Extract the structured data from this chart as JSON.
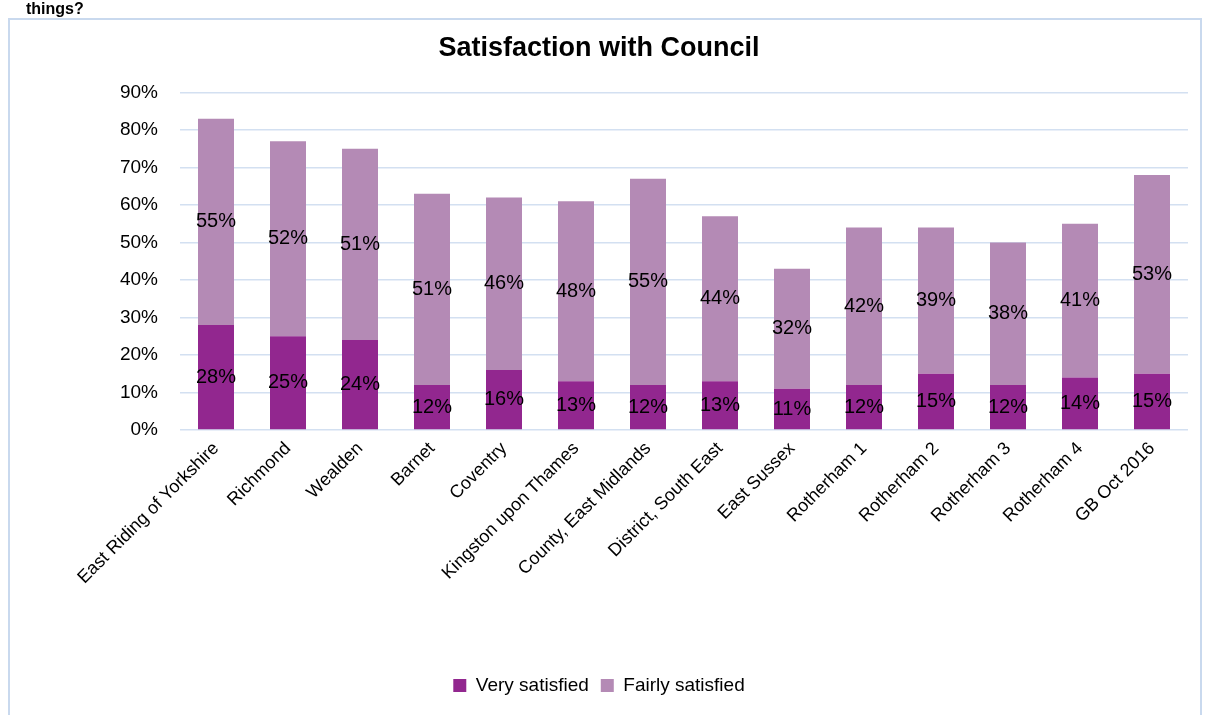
{
  "chart_data": {
    "type": "bar",
    "title": "Satisfaction with Council",
    "annotations": [
      "things?"
    ],
    "categories": [
      "East Riding of Yorkshire",
      "Richmond",
      "Wealden",
      "Barnet",
      "Coventry",
      "Kingston upon Thames",
      "County, East Midlands",
      "District, South East",
      "East Sussex",
      "Rotherham 1",
      "Rotherham 2",
      "Rotherham 3",
      "Rotherham 4",
      "GB Oct 2016"
    ],
    "stacked": true,
    "series": [
      {
        "name": "Very satisfied",
        "color": "#92278f",
        "values": [
          28,
          25,
          24,
          12,
          16,
          13,
          12,
          13,
          11,
          12,
          15,
          12,
          14,
          15
        ],
        "value_labels": [
          "28%",
          "25%",
          "24%",
          "12%",
          "16%",
          "13%",
          "12%",
          "13%",
          "11%",
          "12%",
          "15%",
          "12%",
          "14%",
          "15%"
        ]
      },
      {
        "name": "Fairly satisfied",
        "color": "#b48ab5",
        "values": [
          55,
          52,
          51,
          51,
          46,
          48,
          55,
          44,
          32,
          42,
          39,
          38,
          41,
          53
        ],
        "value_labels": [
          "55%",
          "52%",
          "51%",
          "51%",
          "46%",
          "48%",
          "55%",
          "44%",
          "32%",
          "42%",
          "39%",
          "38%",
          "41%",
          "53%"
        ]
      }
    ],
    "ylim": [
      0,
      90
    ],
    "yticks": [
      {
        "value": 0,
        "label": "0%"
      },
      {
        "value": 10,
        "label": "10%"
      },
      {
        "value": 20,
        "label": "20%"
      },
      {
        "value": 30,
        "label": "30%"
      },
      {
        "value": 40,
        "label": "40%"
      },
      {
        "value": 50,
        "label": "50%"
      },
      {
        "value": 60,
        "label": "60%"
      },
      {
        "value": 70,
        "label": "70%"
      },
      {
        "value": 80,
        "label": "80%"
      },
      {
        "value": 90,
        "label": "90%"
      }
    ],
    "grid": "y",
    "legend": "bottom"
  }
}
